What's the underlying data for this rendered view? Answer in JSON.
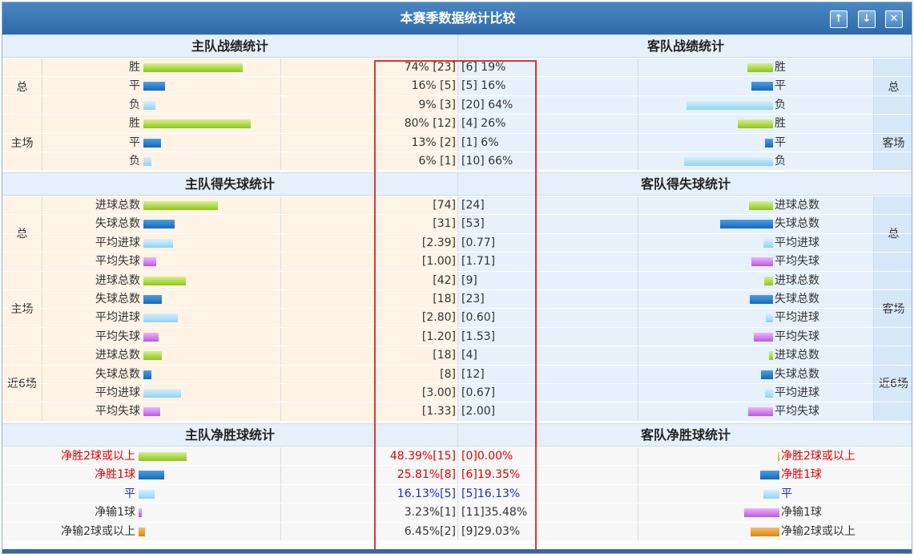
{
  "title": "本赛季数据统计比较",
  "window_buttons": {
    "up": "↑",
    "down": "↓",
    "close": "✕"
  },
  "sections": {
    "home_record": "主队战绩统计",
    "away_record": "客队战绩统计",
    "home_goals": "主队得失球统计",
    "away_goals": "客队得失球统计",
    "home_net": "主队净胜球统计",
    "away_net": "客队净胜球统计"
  },
  "record_groups": [
    {
      "left_label": "总",
      "right_label": "总",
      "rows": [
        {
          "label": "胜",
          "home": "74% [23]",
          "away": "[6] 19%",
          "home_pct": 74,
          "away_pct": 19,
          "color": "g"
        },
        {
          "label": "平",
          "home": "16% [5]",
          "away": "[5] 16%",
          "home_pct": 16,
          "away_pct": 16,
          "color": "b"
        },
        {
          "label": "负",
          "home": "9% [3]",
          "away": "[20] 64%",
          "home_pct": 9,
          "away_pct": 64,
          "color": "lb"
        }
      ]
    },
    {
      "left_label": "主场",
      "right_label": "客场",
      "rows": [
        {
          "label": "胜",
          "home": "80% [12]",
          "away": "[4] 26%",
          "home_pct": 80,
          "away_pct": 26,
          "color": "g"
        },
        {
          "label": "平",
          "home": "13% [2]",
          "away": "[1] 6%",
          "home_pct": 13,
          "away_pct": 6,
          "color": "b"
        },
        {
          "label": "负",
          "home": "6% [1]",
          "away": "[10] 66%",
          "home_pct": 6,
          "away_pct": 66,
          "color": "lb"
        }
      ]
    }
  ],
  "goal_groups": [
    {
      "left_label": "总",
      "right_label": "总",
      "rows": [
        {
          "label": "进球总数",
          "home": "[74]",
          "away": "[24]",
          "home_v": 74,
          "away_v": 24,
          "color": "g"
        },
        {
          "label": "失球总数",
          "home": "[31]",
          "away": "[53]",
          "home_v": 31,
          "away_v": 53,
          "color": "b"
        },
        {
          "label": "平均进球",
          "home": "[2.39]",
          "away": "[0.77]",
          "home_v": 2.39,
          "away_v": 0.77,
          "color": "lb"
        },
        {
          "label": "平均失球",
          "home": "[1.00]",
          "away": "[1.71]",
          "home_v": 1.0,
          "away_v": 1.71,
          "color": "p"
        }
      ]
    },
    {
      "left_label": "主场",
      "right_label": "客场",
      "rows": [
        {
          "label": "进球总数",
          "home": "[42]",
          "away": "[9]",
          "home_v": 42,
          "away_v": 9,
          "color": "g"
        },
        {
          "label": "失球总数",
          "home": "[18]",
          "away": "[23]",
          "home_v": 18,
          "away_v": 23,
          "color": "b"
        },
        {
          "label": "平均进球",
          "home": "[2.80]",
          "away": "[0.60]",
          "home_v": 2.8,
          "away_v": 0.6,
          "color": "lb"
        },
        {
          "label": "平均失球",
          "home": "[1.20]",
          "away": "[1.53]",
          "home_v": 1.2,
          "away_v": 1.53,
          "color": "p"
        }
      ]
    },
    {
      "left_label": "近6场",
      "right_label": "近6场",
      "rows": [
        {
          "label": "进球总数",
          "home": "[18]",
          "away": "[4]",
          "home_v": 18,
          "away_v": 4,
          "color": "g"
        },
        {
          "label": "失球总数",
          "home": "[8]",
          "away": "[12]",
          "home_v": 8,
          "away_v": 12,
          "color": "b"
        },
        {
          "label": "平均进球",
          "home": "[3.00]",
          "away": "[0.67]",
          "home_v": 3.0,
          "away_v": 0.67,
          "color": "lb"
        },
        {
          "label": "平均失球",
          "home": "[1.33]",
          "away": "[2.00]",
          "home_v": 1.33,
          "away_v": 2.0,
          "color": "p"
        }
      ]
    }
  ],
  "net_rows": [
    {
      "label": "净胜2球或以上",
      "home": "48.39%[15]",
      "away": "[0]0.00%",
      "home_pct": 48.39,
      "away_pct": 0.0,
      "color": "g",
      "text": "red"
    },
    {
      "label": "净胜1球",
      "home": "25.81%[8]",
      "away": "[6]19.35%",
      "home_pct": 25.81,
      "away_pct": 19.35,
      "color": "b",
      "text": "red"
    },
    {
      "label": "平",
      "home": "16.13%[5]",
      "away": "[5]16.13%",
      "home_pct": 16.13,
      "away_pct": 16.13,
      "color": "lb",
      "text": "blue"
    },
    {
      "label": "净输1球",
      "home": "3.23%[1]",
      "away": "[11]35.48%",
      "home_pct": 3.23,
      "away_pct": 35.48,
      "color": "p",
      "text": "normal"
    },
    {
      "label": "净输2球或以上",
      "home": "6.45%[2]",
      "away": "[9]29.03%",
      "home_pct": 6.45,
      "away_pct": 29.03,
      "color": "o",
      "text": "normal"
    }
  ],
  "colors": {
    "home_bg": "#fff3e5",
    "away_bg": "#e6f1fb",
    "title_bar": "#2e6aa8",
    "highlight_box": "#e03535"
  }
}
